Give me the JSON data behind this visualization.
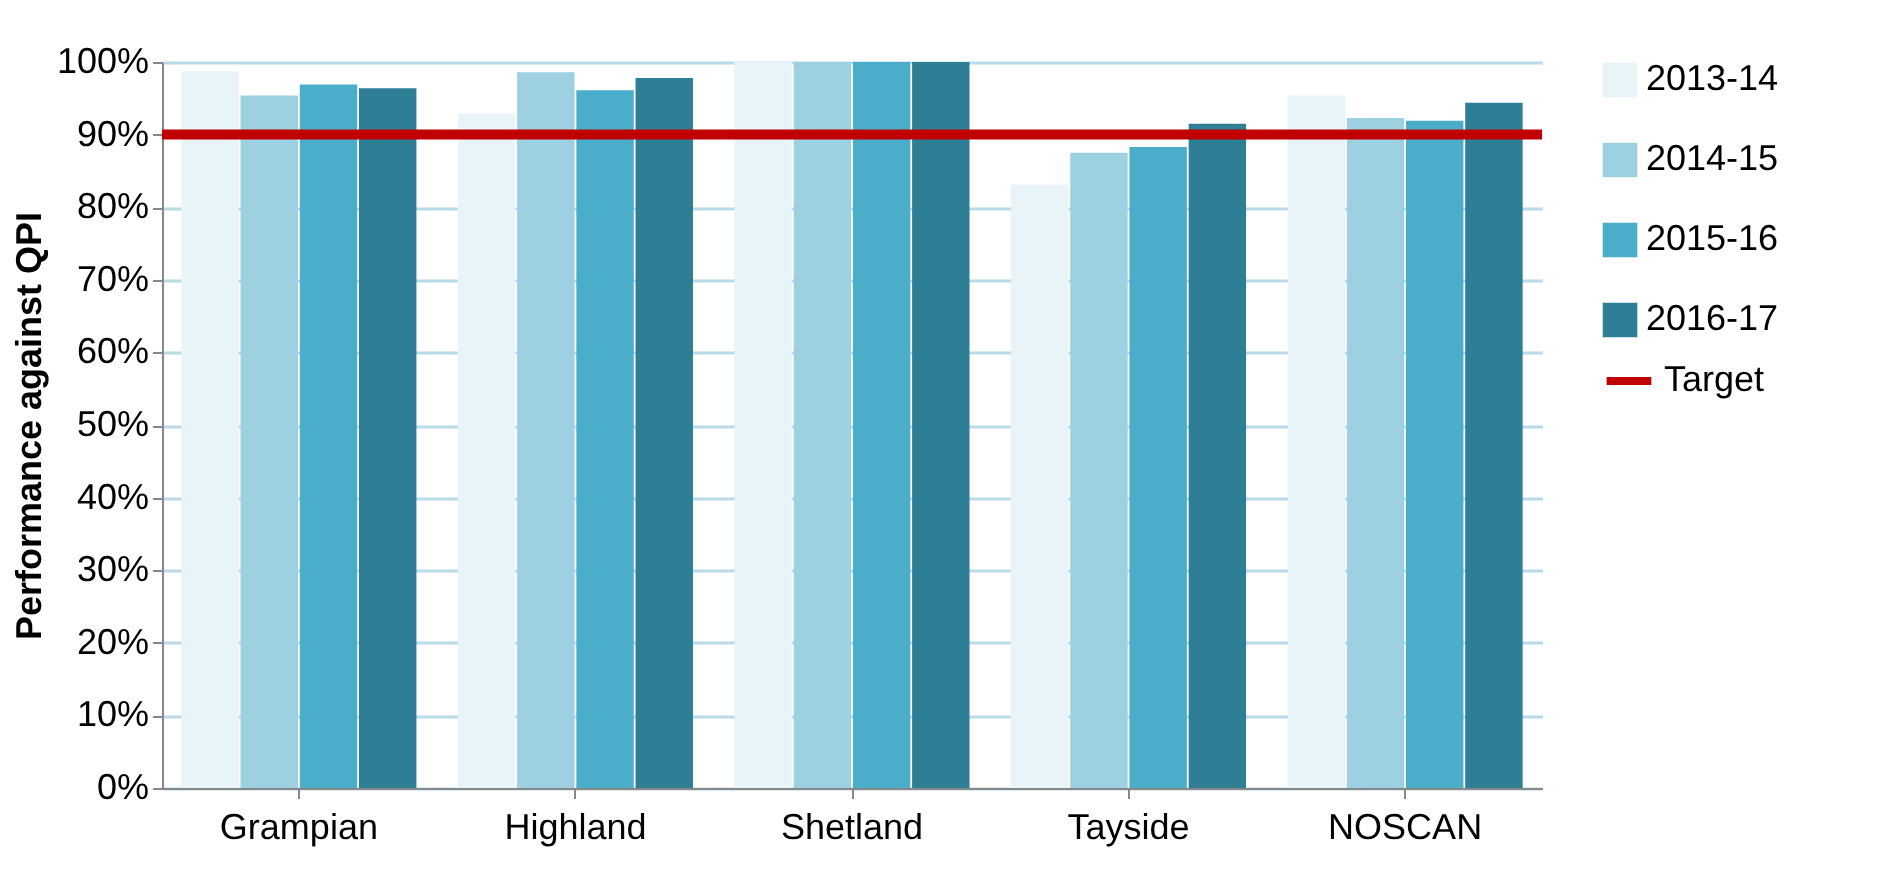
{
  "chart_data": {
    "type": "bar",
    "ylabel": "Performance against QPI",
    "categories": [
      "Grampian",
      "Highland",
      "Shetland",
      "Tayside",
      "NOSCAN"
    ],
    "series": [
      {
        "name": "2013-14",
        "color": "#e8f4f8",
        "values": [
          98.7,
          92.9,
          100,
          83.1,
          95.4
        ]
      },
      {
        "name": "2014-15",
        "color": "#9dd0e0",
        "values": [
          95.4,
          98.6,
          100,
          87.5,
          92.3
        ]
      },
      {
        "name": "2015-16",
        "color": "#4aaecb",
        "values": [
          96.9,
          96.1,
          100,
          88.3,
          91.9
        ]
      },
      {
        "name": "2016-17",
        "color": "#2e7f96",
        "values": [
          96.4,
          97.8,
          100,
          91.5,
          94.4
        ]
      }
    ],
    "ref_lines": [
      {
        "axis": "y",
        "value": 90,
        "label": "Target",
        "color": "#c00000"
      }
    ],
    "ylim": [
      0,
      100
    ],
    "yticks": [
      {
        "value": 0,
        "label": "0%"
      },
      {
        "value": 10,
        "label": "10%"
      },
      {
        "value": 20,
        "label": "20%"
      },
      {
        "value": 30,
        "label": "30%"
      },
      {
        "value": 40,
        "label": "40%"
      },
      {
        "value": 50,
        "label": "50%"
      },
      {
        "value": 60,
        "label": "60%"
      },
      {
        "value": 70,
        "label": "70%"
      },
      {
        "value": 80,
        "label": "80%"
      },
      {
        "value": 90,
        "label": "90%"
      },
      {
        "value": 100,
        "label": "100%"
      }
    ],
    "grid": "y",
    "legend": "right"
  }
}
